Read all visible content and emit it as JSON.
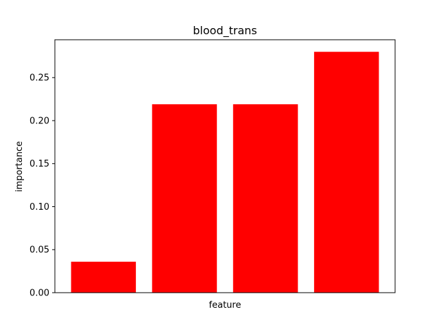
{
  "chart_data": {
    "type": "bar",
    "title": "blood_trans",
    "xlabel": "feature",
    "ylabel": "importance",
    "categories": [
      "",
      "",
      "",
      ""
    ],
    "values": [
      0.036,
      0.219,
      0.219,
      0.28
    ],
    "ylim": [
      0,
      0.294
    ],
    "yticks": [
      0.0,
      0.05,
      0.1,
      0.15,
      0.2,
      0.25
    ],
    "ytick_labels": [
      "0.00",
      "0.05",
      "0.10",
      "0.15",
      "0.20",
      "0.25"
    ],
    "bar_color": "#ff0000",
    "grid": false,
    "legend": "none"
  }
}
